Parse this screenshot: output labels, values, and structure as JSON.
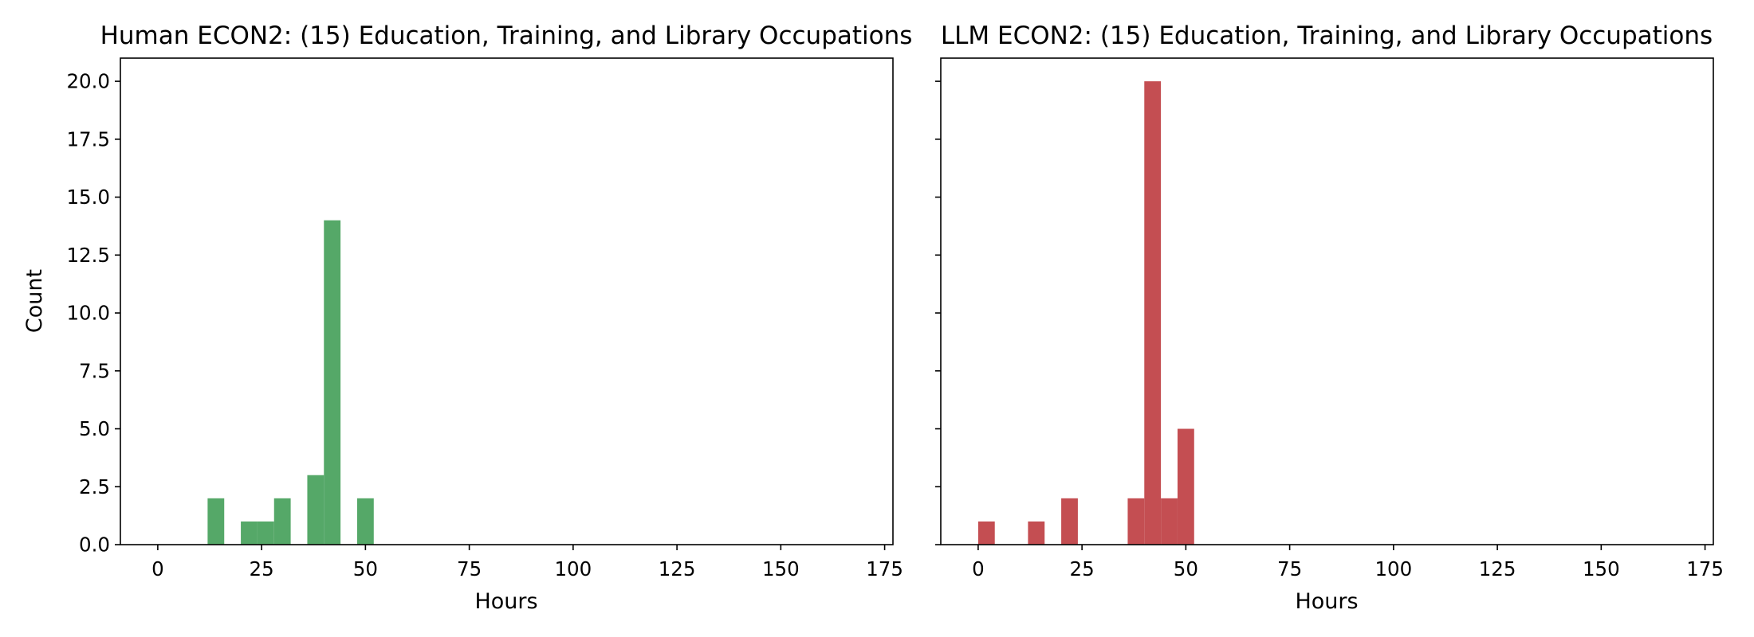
{
  "chart_data": [
    {
      "type": "bar",
      "title": "Human ECON2: (15) Education, Training, and Library Occupations",
      "xlabel": "Hours",
      "ylabel": "Count",
      "xlim": [
        -9,
        177
      ],
      "ylim": [
        0,
        21
      ],
      "xticks": [
        0,
        25,
        50,
        75,
        100,
        125,
        150,
        175
      ],
      "yticks": [
        0.0,
        2.5,
        5.0,
        7.5,
        10.0,
        12.5,
        15.0,
        17.5,
        20.0
      ],
      "color": "#55a868",
      "bins": [
        {
          "start": 12,
          "end": 16,
          "count": 2
        },
        {
          "start": 20,
          "end": 24,
          "count": 1
        },
        {
          "start": 24,
          "end": 28,
          "count": 1
        },
        {
          "start": 28,
          "end": 32,
          "count": 2
        },
        {
          "start": 36,
          "end": 40,
          "count": 3
        },
        {
          "start": 40,
          "end": 44,
          "count": 14
        },
        {
          "start": 48,
          "end": 52,
          "count": 2
        }
      ]
    },
    {
      "type": "bar",
      "title": "LLM ECON2: (15) Education, Training, and Library Occupations",
      "xlabel": "Hours",
      "ylabel": "",
      "xlim": [
        -9,
        177
      ],
      "ylim": [
        0,
        21
      ],
      "xticks": [
        0,
        25,
        50,
        75,
        100,
        125,
        150,
        175
      ],
      "yticks": [
        0.0,
        2.5,
        5.0,
        7.5,
        10.0,
        12.5,
        15.0,
        17.5,
        20.0
      ],
      "color": "#c44e52",
      "bins": [
        {
          "start": 0,
          "end": 4,
          "count": 1
        },
        {
          "start": 12,
          "end": 16,
          "count": 1
        },
        {
          "start": 20,
          "end": 24,
          "count": 2
        },
        {
          "start": 36,
          "end": 40,
          "count": 2
        },
        {
          "start": 40,
          "end": 44,
          "count": 20
        },
        {
          "start": 44,
          "end": 48,
          "count": 2
        },
        {
          "start": 48,
          "end": 52,
          "count": 5
        }
      ]
    }
  ]
}
